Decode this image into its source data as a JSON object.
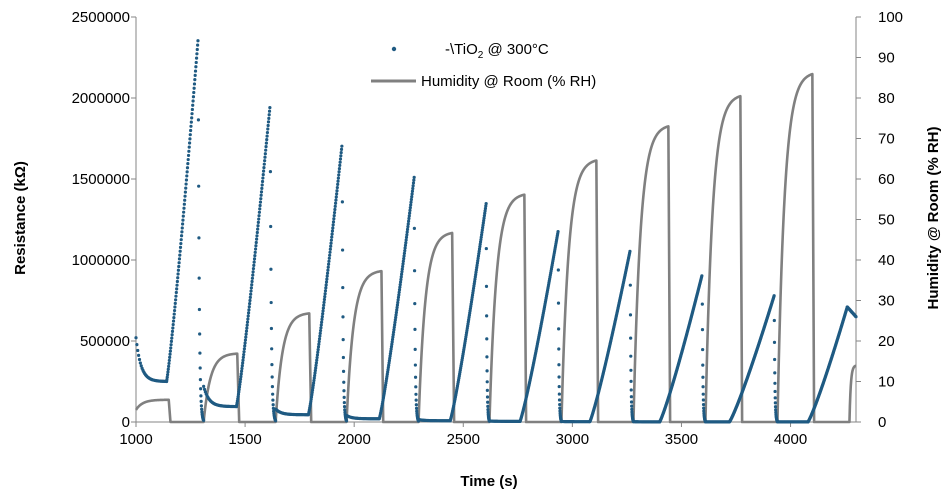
{
  "chart_data": {
    "type": "line",
    "xlabel": "Time (s)",
    "ylabel_left": "Resistance (kΩ)",
    "ylabel_right": "Humidity @ Room (% RH)",
    "xlim": [
      1000,
      4300
    ],
    "ylim_left": [
      0,
      2500000
    ],
    "ylim_right": [
      0,
      100
    ],
    "x_ticks": [
      "1000",
      "1500",
      "2000",
      "2500",
      "3000",
      "3500",
      "4000"
    ],
    "y_ticks_left": [
      "0",
      "500000",
      "1000000",
      "1500000",
      "2000000",
      "2500000"
    ],
    "y_ticks_right": [
      "0",
      "10",
      "20",
      "30",
      "40",
      "50",
      "60",
      "70",
      "80",
      "90",
      "100"
    ],
    "grid": false,
    "legend_position": "top-center",
    "colors": {
      "resistance": "#1f5a82",
      "humidity": "#808080"
    },
    "legend": {
      "resistance": {
        "prefix": "-\\TiO",
        "sub": "2",
        "suffix": "  @ 300°C"
      },
      "humidity": "Humidity @ Room (% RH)"
    },
    "series": [
      {
        "name": "-\\TiO2 @ 300°C",
        "axis": "left",
        "style": "markers",
        "cycles": [
          {
            "t0": 1000,
            "r0": 520000,
            "t_up": 1140,
            "r_min": 250000,
            "t_peak": 1285,
            "r_peak": 2370000,
            "t_end": 1310
          },
          {
            "t0": 1310,
            "r0": 220000,
            "t_up": 1460,
            "r_min": 95000,
            "t_peak": 1615,
            "r_peak": 1960000,
            "t_end": 1640
          },
          {
            "t0": 1640,
            "r0": 80000,
            "t_up": 1790,
            "r_min": 45000,
            "t_peak": 1945,
            "r_peak": 1720000,
            "t_end": 1965
          },
          {
            "t0": 1965,
            "r0": 40000,
            "t_up": 2115,
            "r_min": 20000,
            "t_peak": 2275,
            "r_peak": 1510000,
            "t_end": 2295
          },
          {
            "t0": 2295,
            "r0": 15000,
            "t_up": 2440,
            "r_min": 8000,
            "t_peak": 2605,
            "r_peak": 1350000,
            "t_end": 2620
          },
          {
            "t0": 2620,
            "r0": 6000,
            "t_up": 2760,
            "r_min": 4000,
            "t_peak": 2935,
            "r_peak": 1180000,
            "t_end": 2950
          },
          {
            "t0": 2950,
            "r0": 3000,
            "t_up": 3080,
            "r_min": 2000,
            "t_peak": 3265,
            "r_peak": 1060000,
            "t_end": 3280
          },
          {
            "t0": 3280,
            "r0": 2000,
            "t_up": 3400,
            "r_min": 1000,
            "t_peak": 3595,
            "r_peak": 910000,
            "t_end": 3610
          },
          {
            "t0": 3610,
            "r0": 1000,
            "t_up": 3720,
            "r_min": 1000,
            "t_peak": 3925,
            "r_peak": 780000,
            "t_end": 3940
          },
          {
            "t0": 3940,
            "r0": 1000,
            "t_up": 4080,
            "r_min": 1000,
            "t_peak": 4260,
            "r_peak": 710000,
            "t_end": 4300
          }
        ]
      },
      {
        "name": "Humidity @ Room (% RH)",
        "axis": "right",
        "style": "line",
        "cycles": [
          {
            "t_start": 1000,
            "h_start": 3,
            "t_fall": 1150,
            "h_plateau": 5.5
          },
          {
            "t_start": 1310,
            "h_start": 0,
            "t_fall": 1465,
            "h_plateau": 17
          },
          {
            "t_start": 1640,
            "h_start": 0,
            "t_fall": 1795,
            "h_plateau": 27
          },
          {
            "t_start": 1965,
            "h_start": 0,
            "t_fall": 2125,
            "h_plateau": 37.5
          },
          {
            "t_start": 2295,
            "h_start": 0,
            "t_fall": 2450,
            "h_plateau": 47
          },
          {
            "t_start": 2620,
            "h_start": 0,
            "t_fall": 2780,
            "h_plateau": 56.5
          },
          {
            "t_start": 2950,
            "h_start": 0,
            "t_fall": 3110,
            "h_plateau": 65
          },
          {
            "t_start": 3280,
            "h_start": 0,
            "t_fall": 3440,
            "h_plateau": 73.5
          },
          {
            "t_start": 3610,
            "h_start": 0,
            "t_fall": 3770,
            "h_plateau": 81
          },
          {
            "t_start": 3940,
            "h_start": 0,
            "t_fall": 4100,
            "h_plateau": 86.5
          },
          {
            "t_start": 4270,
            "h_start": 0,
            "t_fall": 4300,
            "h_plateau": 14
          }
        ]
      }
    ]
  }
}
